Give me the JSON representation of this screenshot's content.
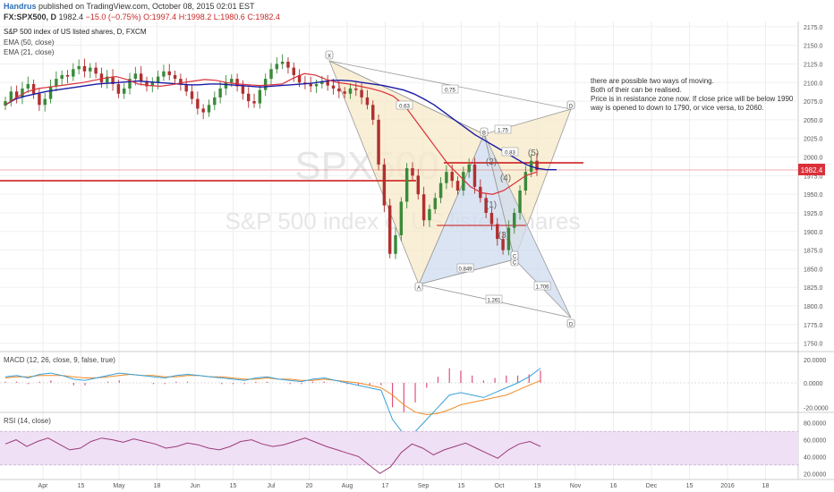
{
  "header": {
    "author": "Handrus",
    "published_text": "published on TradingView.com, October 08, 2015 02:01 EST",
    "symbol": "FX:SPX500, D",
    "last": "1982.4",
    "change": "−15.0 (−0.75%)",
    "ohlc": {
      "o": "O:1997.4",
      "h": "H:1998.2",
      "l": "L:1980.6",
      "c": "C:1982.4"
    }
  },
  "main_pane": {
    "title": "S&P 500 index of US listed shares, D, FXCM",
    "indicators": [
      "EMA (50, close)",
      "EMA (21, close)"
    ],
    "watermark_symbol": "SPX500",
    "watermark_name": "S&P 500 index of US listed shares",
    "price_label": "1982.4",
    "annotation": [
      "there are possible two ways of moving.",
      "Both of their can be realised.",
      "Price is in resistance zone now. If close price will be below 1990",
      "way is opened to down to 1790, or   vice versa, to 2060."
    ]
  },
  "pattern_labels": {
    "points": [
      "X",
      "A",
      "B",
      "C",
      "D",
      "D",
      "C"
    ],
    "ratios": [
      "0.75",
      "0.63",
      "1.75",
      "0.83",
      "0.849",
      "1.261",
      "1.706"
    ],
    "waves": [
      "(2)",
      "(4)",
      "(1)",
      "(3)",
      "(5)"
    ]
  },
  "macd_pane": {
    "title": "MACD (12, 26, close, 9, false, true)"
  },
  "rsi_pane": {
    "title": "RSI (14, close)"
  },
  "colors": {
    "ema50": "#1a1aa6",
    "ema21": "#d9303a",
    "up_candle": "#3a8a3a",
    "down_candle": "#b03030",
    "pattern_bear_fill": "#f5e9c8",
    "pattern_bull_fill": "#cfdbef",
    "resistance_line": "#cc1111",
    "macd_line": "#3aa0d8",
    "signal_line": "#f08a24",
    "hist": "#e0507a",
    "rsi_line": "#9b3b7a",
    "rsi_band": "#efe0f5"
  },
  "chart_data": [
    {
      "type": "candlestick",
      "title": "S&P 500 index of US listed shares, D, FXCM",
      "x_ticks": [
        "Apr",
        "15",
        "May",
        "18",
        "Jun",
        "15",
        "Jul",
        "20",
        "Aug",
        "17",
        "Sep",
        "15",
        "Oct",
        "19",
        "Nov",
        "16",
        "Dec",
        "15",
        "2016",
        "18"
      ],
      "y_ticks": [
        2175,
        2150,
        2125,
        2100,
        2075,
        2050,
        2025,
        2000,
        1975,
        1950,
        1925,
        1900,
        1875,
        1850,
        1825,
        1800,
        1775,
        1750
      ],
      "ylim": [
        1740,
        2182
      ],
      "close": [
        2075,
        2088,
        2080,
        2092,
        2098,
        2085,
        2070,
        2078,
        2095,
        2105,
        2110,
        2108,
        2118,
        2122,
        2115,
        2120,
        2112,
        2100,
        2108,
        2098,
        2085,
        2092,
        2105,
        2112,
        2102,
        2095,
        2100,
        2108,
        2115,
        2110,
        2105,
        2098,
        2088,
        2078,
        2065,
        2060,
        2070,
        2080,
        2092,
        2100,
        2105,
        2095,
        2085,
        2075,
        2072,
        2090,
        2105,
        2118,
        2125,
        2128,
        2120,
        2110,
        2100,
        2098,
        2095,
        2098,
        2102,
        2096,
        2092,
        2088,
        2085,
        2092,
        2090,
        2080,
        2070,
        2050,
        1990,
        1935,
        1870,
        1895,
        1940,
        1985,
        1975,
        1950,
        1915,
        1930,
        1945,
        1965,
        1980,
        1968,
        1955,
        1980,
        1990,
        1960,
        1945,
        1925,
        1910,
        1890,
        1875,
        1905,
        1925,
        1955,
        1980,
        1995,
        1982.4
      ],
      "ema50": [
        2070,
        2078,
        2082,
        2085,
        2088,
        2090,
        2092,
        2094,
        2096,
        2098,
        2099,
        2100,
        2101,
        2102,
        2101,
        2100,
        2099,
        2098,
        2097,
        2097,
        2098,
        2098,
        2097,
        2096,
        2095,
        2094,
        2095,
        2096,
        2097,
        2098,
        2099,
        2101,
        2103,
        2103,
        2102,
        2100,
        2098,
        2096,
        2093,
        2090,
        2085,
        2078,
        2070,
        2060,
        2050,
        2040,
        2030,
        2022,
        2014,
        2006,
        1998,
        1990,
        1985,
        1983,
        1983
      ],
      "ema21": [
        2070,
        2080,
        2088,
        2092,
        2094,
        2096,
        2098,
        2100,
        2103,
        2106,
        2108,
        2104,
        2098,
        2096,
        2095,
        2097,
        2100,
        2102,
        2104,
        2103,
        2100,
        2098,
        2097,
        2096,
        2097,
        2098,
        2106,
        2112,
        2110,
        2104,
        2100,
        2098,
        2095,
        2092,
        2088,
        2082,
        2070,
        2050,
        2030,
        2010,
        1990,
        1975,
        1960,
        1952,
        1950,
        1955,
        1965,
        1975,
        1980
      ]
    },
    {
      "type": "line",
      "title": "MACD (12, 26, close, 9, false, true)",
      "y_ticks": [
        20,
        0,
        -20
      ],
      "ylim": [
        -22,
        22
      ],
      "series": [
        {
          "name": "MACD",
          "values": [
            5,
            6,
            4,
            7,
            8,
            6,
            3,
            2,
            4,
            6,
            8,
            7,
            6,
            5,
            4,
            6,
            7,
            6,
            5,
            4,
            3,
            2,
            4,
            5,
            3,
            2,
            1,
            3,
            4,
            2,
            0,
            -2,
            -4,
            -6,
            -30,
            -42,
            -40,
            -30,
            -20,
            -10,
            -8,
            -10,
            -12,
            -8,
            -4,
            0,
            5,
            12
          ]
        },
        {
          "name": "Signal",
          "values": [
            4,
            5,
            5,
            6,
            6,
            6,
            5,
            4,
            4,
            5,
            6,
            7,
            6,
            6,
            5,
            5,
            6,
            6,
            5,
            5,
            4,
            3,
            3,
            4,
            3,
            3,
            2,
            2,
            3,
            2,
            1,
            0,
            -2,
            -4,
            -10,
            -18,
            -24,
            -26,
            -25,
            -22,
            -18,
            -16,
            -14,
            -12,
            -10,
            -6,
            -2,
            2
          ]
        }
      ]
    },
    {
      "type": "line",
      "title": "RSI (14, close)",
      "y_ticks": [
        80,
        60,
        40,
        20
      ],
      "ylim": [
        15,
        85
      ],
      "band": [
        30,
        70
      ],
      "series": [
        {
          "name": "RSI",
          "values": [
            55,
            60,
            52,
            58,
            62,
            55,
            48,
            50,
            58,
            62,
            60,
            57,
            61,
            58,
            55,
            50,
            52,
            56,
            54,
            50,
            48,
            52,
            58,
            60,
            55,
            52,
            54,
            58,
            62,
            57,
            52,
            48,
            44,
            40,
            30,
            20,
            28,
            45,
            55,
            50,
            42,
            48,
            52,
            56,
            50,
            44,
            38,
            48,
            55,
            58,
            52
          ]
        }
      ]
    }
  ]
}
